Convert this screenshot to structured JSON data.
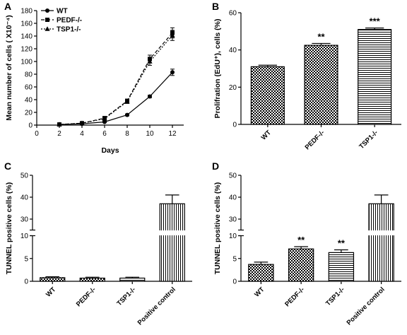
{
  "chart_data": [
    {
      "panel": "A",
      "type": "line",
      "xlabel": "Days",
      "ylabel": "Mean number of cells ( X10⁻⁴)",
      "x": [
        2,
        4,
        6,
        8,
        10,
        12
      ],
      "xticks": [
        0,
        2,
        4,
        6,
        8,
        10,
        12
      ],
      "yticks": [
        0,
        20,
        40,
        60,
        80,
        100,
        120,
        140,
        160,
        180
      ],
      "xlim": [
        0,
        13
      ],
      "ylim": [
        0,
        180
      ],
      "legend_position": "top-left",
      "series": [
        {
          "name": "WT",
          "marker": "circle",
          "line": "solid",
          "values": [
            1,
            2,
            5,
            16,
            45,
            83
          ],
          "errors": [
            0.5,
            0.5,
            1,
            1.5,
            2,
            5
          ]
        },
        {
          "name": "PEDF-/-",
          "marker": "square",
          "line": "dashed",
          "values": [
            1,
            3,
            11,
            38,
            104,
            145
          ],
          "errors": [
            0.5,
            0.5,
            1.5,
            3,
            6,
            8
          ]
        },
        {
          "name": "TSP1-/-",
          "marker": "triangle",
          "line": "dotted",
          "values": [
            1,
            3,
            10,
            37,
            100,
            141
          ],
          "errors": [
            0.5,
            0.5,
            1.5,
            3,
            6,
            8
          ]
        }
      ]
    },
    {
      "panel": "B",
      "type": "bar",
      "ylabel": "Prolifration (EdU⁺), cells (%)",
      "categories": [
        "WT",
        "PEDF-/-",
        "TSP1-/-"
      ],
      "values": [
        31,
        42.5,
        51
      ],
      "errors": [
        0.8,
        1,
        0.8
      ],
      "significance": [
        "",
        "**",
        "***"
      ],
      "patterns": [
        "check",
        "check",
        "hstripes"
      ],
      "yticks": [
        0,
        20,
        40,
        60
      ],
      "ylim": [
        0,
        60
      ]
    },
    {
      "panel": "C",
      "type": "bar",
      "ylabel": "TUNNEL positive cells (%)",
      "categories": [
        "WT",
        "PEDF-/-",
        "TSP1-/-",
        "Positive control"
      ],
      "values": [
        0.8,
        0.7,
        0.7,
        37
      ],
      "errors": [
        0.2,
        0.2,
        0.2,
        4
      ],
      "significance": [
        "",
        "",
        "",
        ""
      ],
      "patterns": [
        "check",
        "check",
        "hstripes",
        "vstripes"
      ],
      "yticks": [
        0,
        5,
        10,
        30,
        40,
        50
      ],
      "axis_break": [
        10,
        25
      ],
      "ylim": [
        0,
        50
      ]
    },
    {
      "panel": "D",
      "type": "bar",
      "ylabel": "TUNNEL positive cells (%)",
      "categories": [
        "WT",
        "PEDF-/-",
        "TSP1-/-",
        "Positive control"
      ],
      "values": [
        3.7,
        7.1,
        6.3,
        37
      ],
      "errors": [
        0.5,
        0.5,
        0.6,
        4
      ],
      "significance": [
        "",
        "**",
        "**",
        ""
      ],
      "patterns": [
        "check",
        "check",
        "hstripes",
        "vstripes"
      ],
      "yticks": [
        0,
        5,
        10,
        30,
        40,
        50
      ],
      "axis_break": [
        10,
        25
      ],
      "ylim": [
        0,
        50
      ]
    }
  ]
}
